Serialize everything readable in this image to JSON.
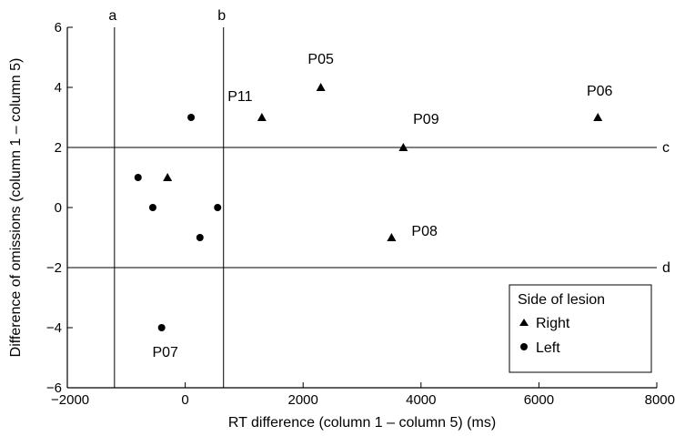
{
  "chart_data": {
    "type": "scatter",
    "xlabel": "RT difference (column 1 – column 5) (ms)",
    "ylabel": "Difference of omissions (column 1 – column 5)",
    "xlim": [
      -2000,
      8000
    ],
    "ylim": [
      -6,
      6
    ],
    "xticks": [
      -2000,
      0,
      2000,
      4000,
      6000,
      8000
    ],
    "yticks": [
      -6,
      -4,
      -2,
      0,
      2,
      4,
      6
    ],
    "xtick_labels": [
      "−2000",
      "0",
      "2000",
      "4000",
      "6000",
      "8000"
    ],
    "ytick_labels": [
      "−6",
      "−4",
      "−2",
      "0",
      "2",
      "4",
      "6"
    ],
    "reference_lines": [
      {
        "label": "a",
        "orientation": "vertical",
        "value": -1200
      },
      {
        "label": "b",
        "orientation": "vertical",
        "value": 650
      },
      {
        "label": "c",
        "orientation": "horizontal",
        "value": 2
      },
      {
        "label": "d",
        "orientation": "horizontal",
        "value": -2
      }
    ],
    "legend": {
      "title": "Side of lesion",
      "placement": "bottom-right",
      "entries": [
        {
          "marker": "triangle",
          "label": "Right"
        },
        {
          "marker": "circle",
          "label": "Left"
        }
      ]
    },
    "series": [
      {
        "name": "Right",
        "marker": "triangle",
        "points": [
          {
            "x": 1300,
            "y": 3,
            "label": "P11"
          },
          {
            "x": 2300,
            "y": 4,
            "label": "P05"
          },
          {
            "x": 3700,
            "y": 2,
            "label": "P09"
          },
          {
            "x": 7000,
            "y": 3,
            "label": "P06"
          },
          {
            "x": 3500,
            "y": -1,
            "label": "P08"
          },
          {
            "x": -300,
            "y": 1,
            "label": ""
          }
        ]
      },
      {
        "name": "Left",
        "marker": "circle",
        "points": [
          {
            "x": 100,
            "y": 3,
            "label": ""
          },
          {
            "x": -800,
            "y": 1,
            "label": ""
          },
          {
            "x": -550,
            "y": 0,
            "label": ""
          },
          {
            "x": 550,
            "y": 0,
            "label": ""
          },
          {
            "x": 250,
            "y": -1,
            "label": ""
          },
          {
            "x": -400,
            "y": -4,
            "label": "P07"
          }
        ]
      }
    ]
  }
}
